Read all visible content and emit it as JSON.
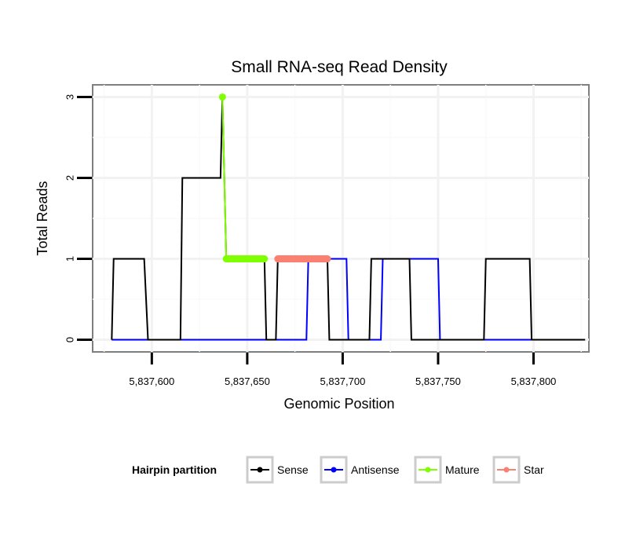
{
  "chart_data": {
    "type": "line",
    "title": "Small RNA-seq Read Density",
    "xlabel": "Genomic Position",
    "ylabel": "Total Reads",
    "xlim": [
      5837569,
      5837829
    ],
    "ylim": [
      -0.15,
      3.15
    ],
    "x_ticks": [
      5837600,
      5837650,
      5837700,
      5837750,
      5837800
    ],
    "x_tick_labels": [
      "5,837,600",
      "5,837,650",
      "5,837,700",
      "5,837,750",
      "5,837,800"
    ],
    "y_ticks": [
      0,
      1,
      2,
      3
    ],
    "y_tick_labels": [
      "0",
      "1",
      "2",
      "3"
    ],
    "grid": true,
    "legend": {
      "title": "Hairpin partition",
      "placement": "bottom",
      "entries": [
        "Sense",
        "Antisense",
        "Mature",
        "Star"
      ]
    },
    "series": [
      {
        "name": "Sense",
        "color": "#000000",
        "x": [
          5837579,
          5837580,
          5837596,
          5837598,
          5837615,
          5837616,
          5837636,
          5837637,
          5837639,
          5837659,
          5837660,
          5837665,
          5837666,
          5837692,
          5837693,
          5837714,
          5837715,
          5837735,
          5837736,
          5837774,
          5837775,
          5837798,
          5837799,
          5837827
        ],
        "y": [
          0,
          1,
          1,
          0,
          0,
          2,
          2,
          3,
          1,
          1,
          0,
          0,
          1,
          1,
          0,
          0,
          1,
          1,
          0,
          0,
          1,
          1,
          0,
          0
        ]
      },
      {
        "name": "Antisense",
        "color": "#0000ff",
        "x": [
          5837579,
          5837681,
          5837682,
          5837702,
          5837703,
          5837720,
          5837721,
          5837750,
          5837751,
          5837798,
          5837799,
          5837827
        ],
        "y": [
          0,
          0,
          1,
          1,
          0,
          0,
          1,
          1,
          0,
          0,
          0,
          0
        ]
      },
      {
        "name": "Mature",
        "color": "#7fff00",
        "x": [
          5837637,
          5837639,
          5837659
        ],
        "y": [
          3,
          1,
          1
        ]
      },
      {
        "name": "Star",
        "color": "#fa8072",
        "x": [
          5837666,
          5837692
        ],
        "y": [
          1,
          1
        ]
      }
    ]
  }
}
